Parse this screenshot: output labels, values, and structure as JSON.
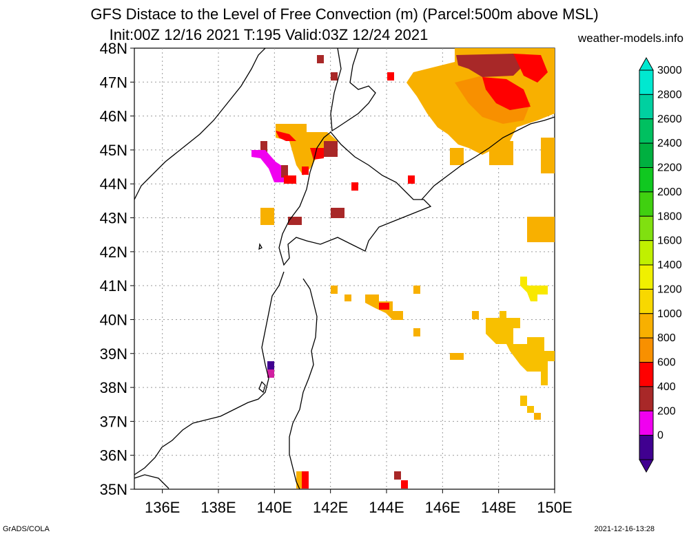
{
  "header": {
    "title_line1": "GFS Distace to the Level of Free Convection (m) (Parcel:500m above MSL)",
    "title_line2": "Init:00Z 12/16 2021 T:195 Valid:03Z 12/24 2021",
    "site": "weather-models.info"
  },
  "footer": {
    "left": "GrADS/COLA",
    "right": "2021-12-16-13:28"
  },
  "map": {
    "lat_labels": [
      "48N",
      "47N",
      "46N",
      "45N",
      "44N",
      "43N",
      "42N",
      "41N",
      "40N",
      "39N",
      "38N",
      "37N",
      "36N",
      "35N"
    ],
    "lon_labels": [
      "136E",
      "138E",
      "140E",
      "142E",
      "144E",
      "146E",
      "148E",
      "150E"
    ],
    "lat_range": [
      35,
      48
    ],
    "lon_range": [
      135,
      150
    ],
    "grid": true
  },
  "colorbar": {
    "labels": [
      "3000",
      "2800",
      "2600",
      "2400",
      "2200",
      "2000",
      "1800",
      "1600",
      "1400",
      "1200",
      "1000",
      "800",
      "600",
      "400",
      "200",
      "0"
    ],
    "colors": [
      "#00e8d0",
      "#00d0a0",
      "#00c060",
      "#00b040",
      "#10c820",
      "#40d010",
      "#80e010",
      "#c0f000",
      "#f0f000",
      "#f8d800",
      "#f8b000",
      "#f89000",
      "#ff0000",
      "#a82828",
      "#f000f0",
      "#400090"
    ]
  }
}
